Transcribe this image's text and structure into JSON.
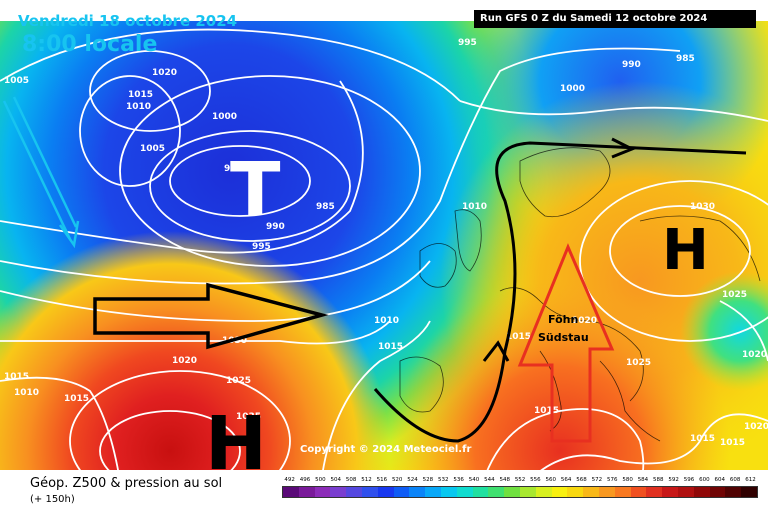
{
  "header": {
    "date": "Vendredi 18 octobre 2024",
    "time": "8:00 locale",
    "run": "Run GFS 0 Z du Samedi 12 octobre 2024"
  },
  "systems": {
    "low": "T",
    "high_atlantic": "H",
    "high_europe": "H"
  },
  "feature_label": {
    "line1": "Föhn",
    "line2": "Südstau"
  },
  "isobar_labels": [
    "995",
    "990",
    "985",
    "1020",
    "1015",
    "1010",
    "1005",
    "1000",
    "985",
    "985",
    "990",
    "995",
    "1000",
    "1030",
    "1025",
    "1020",
    "1015",
    "1010",
    "1005",
    "1010",
    "1015",
    "1020",
    "1025",
    "1030",
    "1035",
    "1015",
    "1020",
    "1015",
    "1010",
    "1020",
    "1015",
    "1015",
    "1020",
    "1025",
    "1015",
    "1015"
  ],
  "copyright": "Copyright © 2024 Meteociel.fr",
  "legend": {
    "title": "Géop. Z500 & pression au sol",
    "subtitle": "(+ 150h)",
    "scale": [
      "492",
      "496",
      "500",
      "504",
      "508",
      "512",
      "516",
      "520",
      "524",
      "528",
      "532",
      "536",
      "540",
      "544",
      "548",
      "552",
      "556",
      "560",
      "564",
      "568",
      "572",
      "576",
      "580",
      "584",
      "588",
      "592",
      "596",
      "600",
      "604",
      "608",
      "612"
    ],
    "colors": [
      "#5a0a78",
      "#7a1a9a",
      "#8c2cb8",
      "#7a3ed0",
      "#5548e0",
      "#3050ee",
      "#1838f0",
      "#0f5cf5",
      "#0b84f8",
      "#09a8f8",
      "#08c8f0",
      "#10dcd0",
      "#20e0a0",
      "#40e070",
      "#70e040",
      "#a8e830",
      "#d8f020",
      "#f8f010",
      "#f8d810",
      "#f8b818",
      "#f89820",
      "#f87820",
      "#f05020",
      "#e03020",
      "#c81818",
      "#b01010",
      "#900808",
      "#700404",
      "#500202",
      "#300000"
    ]
  },
  "colors": {
    "title": "#17c4f0",
    "arrow_red": "#e83020",
    "arrow_black": "#000000",
    "isobars": "#ffffff"
  }
}
